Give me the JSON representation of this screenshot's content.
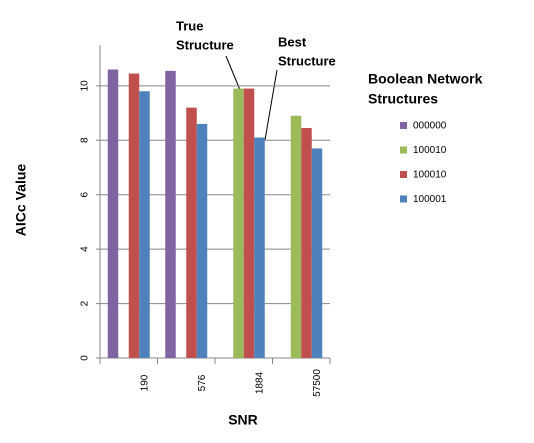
{
  "chart_data": {
    "type": "bar",
    "y_label": "AICc Value",
    "x_label": "SNR",
    "legend_title": [
      "Boolean Network",
      "Structures"
    ],
    "annotations": [
      [
        "True",
        "Structure"
      ],
      [
        "Best",
        "Structure"
      ]
    ],
    "categories": [
      "190",
      "576",
      "1884",
      "57500"
    ],
    "series": [
      {
        "name": "000000",
        "color": "#8064a2",
        "values": [
          10.6,
          10.55,
          null,
          null
        ]
      },
      {
        "name": "100010",
        "color": "#9bbb59",
        "values": [
          null,
          null,
          9.9,
          8.9
        ]
      },
      {
        "name": "100010",
        "color": "#c0504d",
        "values": [
          10.45,
          9.2,
          9.9,
          8.45
        ]
      },
      {
        "name": "100001",
        "color": "#4f81bd",
        "values": [
          9.8,
          8.6,
          8.1,
          7.7
        ]
      }
    ],
    "ylim": [
      0,
      11.5
    ],
    "yticks": [
      0,
      2,
      4,
      6,
      8,
      10
    ],
    "grid": true,
    "legend": "right"
  }
}
